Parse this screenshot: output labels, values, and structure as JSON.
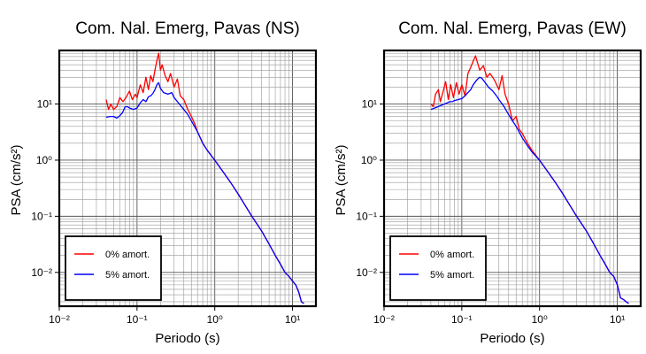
{
  "chart_data": [
    {
      "type": "line",
      "title": "Com. Nal. Emerg, Pavas (NS)",
      "xlabel": "Periodo (s)",
      "ylabel": "PSA (cm/s²)",
      "xscale": "log",
      "yscale": "log",
      "xlim": [
        0.01,
        20
      ],
      "ylim": [
        0.0025,
        90
      ],
      "x_ticks": [
        "10⁻²",
        "10⁻¹",
        "10⁰",
        "10¹"
      ],
      "y_ticks": [
        "10¹",
        "10⁰",
        "10⁻¹",
        "10⁻²"
      ],
      "grid": true,
      "legend_position": "bottom-left",
      "series": [
        {
          "name": "0% amort.",
          "color": "#ff0000",
          "x": [
            0.04,
            0.043,
            0.046,
            0.05,
            0.055,
            0.06,
            0.066,
            0.072,
            0.08,
            0.087,
            0.095,
            0.1,
            0.11,
            0.12,
            0.13,
            0.14,
            0.15,
            0.16,
            0.17,
            0.18,
            0.19,
            0.2,
            0.21,
            0.23,
            0.25,
            0.27,
            0.3,
            0.33,
            0.36,
            0.4,
            0.45,
            0.5,
            0.55,
            0.6,
            0.7,
            0.8,
            1.0,
            1.3,
            1.6,
            2.0,
            2.5,
            3.0,
            4.0,
            5.0,
            6.0,
            7.0,
            8.0,
            9.0,
            10.0,
            11.0,
            12.0,
            13.0,
            14.0
          ],
          "y": [
            12,
            8,
            10,
            8,
            9,
            13,
            11,
            13,
            17,
            12,
            15,
            13,
            22,
            16,
            30,
            18,
            32,
            25,
            40,
            60,
            80,
            40,
            50,
            32,
            25,
            35,
            20,
            28,
            14,
            12,
            8,
            6,
            4.5,
            3.2,
            2,
            1.5,
            1.0,
            0.6,
            0.4,
            0.25,
            0.15,
            0.1,
            0.055,
            0.032,
            0.02,
            0.014,
            0.01,
            0.0085,
            0.007,
            0.006,
            0.0045,
            0.003,
            0.0028
          ]
        },
        {
          "name": "5% amort.",
          "color": "#0000ff",
          "x": [
            0.04,
            0.045,
            0.05,
            0.055,
            0.06,
            0.065,
            0.07,
            0.075,
            0.08,
            0.09,
            0.1,
            0.11,
            0.12,
            0.13,
            0.14,
            0.15,
            0.16,
            0.17,
            0.18,
            0.19,
            0.2,
            0.22,
            0.25,
            0.28,
            0.3,
            0.35,
            0.4,
            0.45,
            0.5,
            0.6,
            0.7,
            0.8,
            1.0,
            1.3,
            1.6,
            2.0,
            2.5,
            3.0,
            4.0,
            5.0,
            6.0,
            7.0,
            8.0,
            9.0,
            10.0,
            11.0,
            12.0,
            13.0,
            14.0
          ],
          "y": [
            5.8,
            6.0,
            6.0,
            5.6,
            6.2,
            7.0,
            8.8,
            9.0,
            8.5,
            8.0,
            8.5,
            10.5,
            12.0,
            11.0,
            13.5,
            14.0,
            15.5,
            18.0,
            22.0,
            24.0,
            19.0,
            16.0,
            15.0,
            16.0,
            13.0,
            10.0,
            8.0,
            6.5,
            5.0,
            3.2,
            2.0,
            1.5,
            1.0,
            0.6,
            0.4,
            0.25,
            0.15,
            0.1,
            0.055,
            0.032,
            0.02,
            0.014,
            0.01,
            0.0085,
            0.007,
            0.006,
            0.0045,
            0.003,
            0.0028
          ]
        }
      ]
    },
    {
      "type": "line",
      "title": "Com. Nal. Emerg, Pavas (EW)",
      "xlabel": "Periodo (s)",
      "ylabel": "PSA (cm/s²)",
      "xscale": "log",
      "yscale": "log",
      "xlim": [
        0.01,
        20
      ],
      "ylim": [
        0.0025,
        90
      ],
      "x_ticks": [
        "10⁻²",
        "10⁻¹",
        "10⁰",
        "10¹"
      ],
      "y_ticks": [
        "10¹",
        "10⁰",
        "10⁻¹",
        "10⁻²"
      ],
      "grid": true,
      "legend_position": "bottom-left",
      "series": [
        {
          "name": "0% amort.",
          "color": "#ff0000",
          "x": [
            0.04,
            0.043,
            0.046,
            0.05,
            0.053,
            0.057,
            0.062,
            0.067,
            0.072,
            0.078,
            0.085,
            0.092,
            0.1,
            0.11,
            0.12,
            0.13,
            0.14,
            0.15,
            0.17,
            0.19,
            0.21,
            0.23,
            0.25,
            0.27,
            0.3,
            0.33,
            0.36,
            0.4,
            0.45,
            0.5,
            0.55,
            0.6,
            0.7,
            0.8,
            1.0,
            1.3,
            1.6,
            2.0,
            2.5,
            3.0,
            4.0,
            5.0,
            6.0,
            7.0,
            8.0,
            9.0,
            10.0,
            11.0,
            12.0,
            13.0,
            14.0
          ],
          "y": [
            10,
            9,
            15,
            18,
            11,
            16,
            25,
            12,
            22,
            13,
            24,
            15,
            22,
            14,
            35,
            45,
            58,
            72,
            40,
            48,
            30,
            35,
            30,
            25,
            18,
            32,
            15,
            10,
            5,
            6,
            3.5,
            3,
            2,
            1.5,
            1.0,
            0.6,
            0.4,
            0.25,
            0.15,
            0.1,
            0.055,
            0.032,
            0.02,
            0.014,
            0.01,
            0.0085,
            0.006,
            0.0035,
            0.0033,
            0.003,
            0.0028
          ]
        },
        {
          "name": "5% amort.",
          "color": "#0000ff",
          "x": [
            0.04,
            0.045,
            0.05,
            0.055,
            0.06,
            0.065,
            0.07,
            0.075,
            0.08,
            0.09,
            0.1,
            0.11,
            0.12,
            0.13,
            0.14,
            0.15,
            0.16,
            0.17,
            0.18,
            0.2,
            0.22,
            0.25,
            0.28,
            0.3,
            0.35,
            0.4,
            0.45,
            0.5,
            0.6,
            0.7,
            0.8,
            1.0,
            1.3,
            1.6,
            2.0,
            2.5,
            3.0,
            4.0,
            5.0,
            6.0,
            7.0,
            8.0,
            9.0,
            10.0,
            11.0,
            12.0,
            13.0,
            14.0
          ],
          "y": [
            8,
            8.5,
            9,
            9.5,
            10,
            10.5,
            11,
            11,
            11.5,
            12,
            12.5,
            14,
            16,
            18,
            22,
            25,
            28,
            30,
            29,
            24,
            20,
            17,
            14,
            12,
            9,
            6.5,
            5,
            4,
            2.5,
            1.8,
            1.4,
            1.0,
            0.6,
            0.4,
            0.25,
            0.15,
            0.1,
            0.055,
            0.032,
            0.02,
            0.014,
            0.01,
            0.0085,
            0.006,
            0.0035,
            0.0033,
            0.003,
            0.0028
          ]
        }
      ]
    }
  ]
}
